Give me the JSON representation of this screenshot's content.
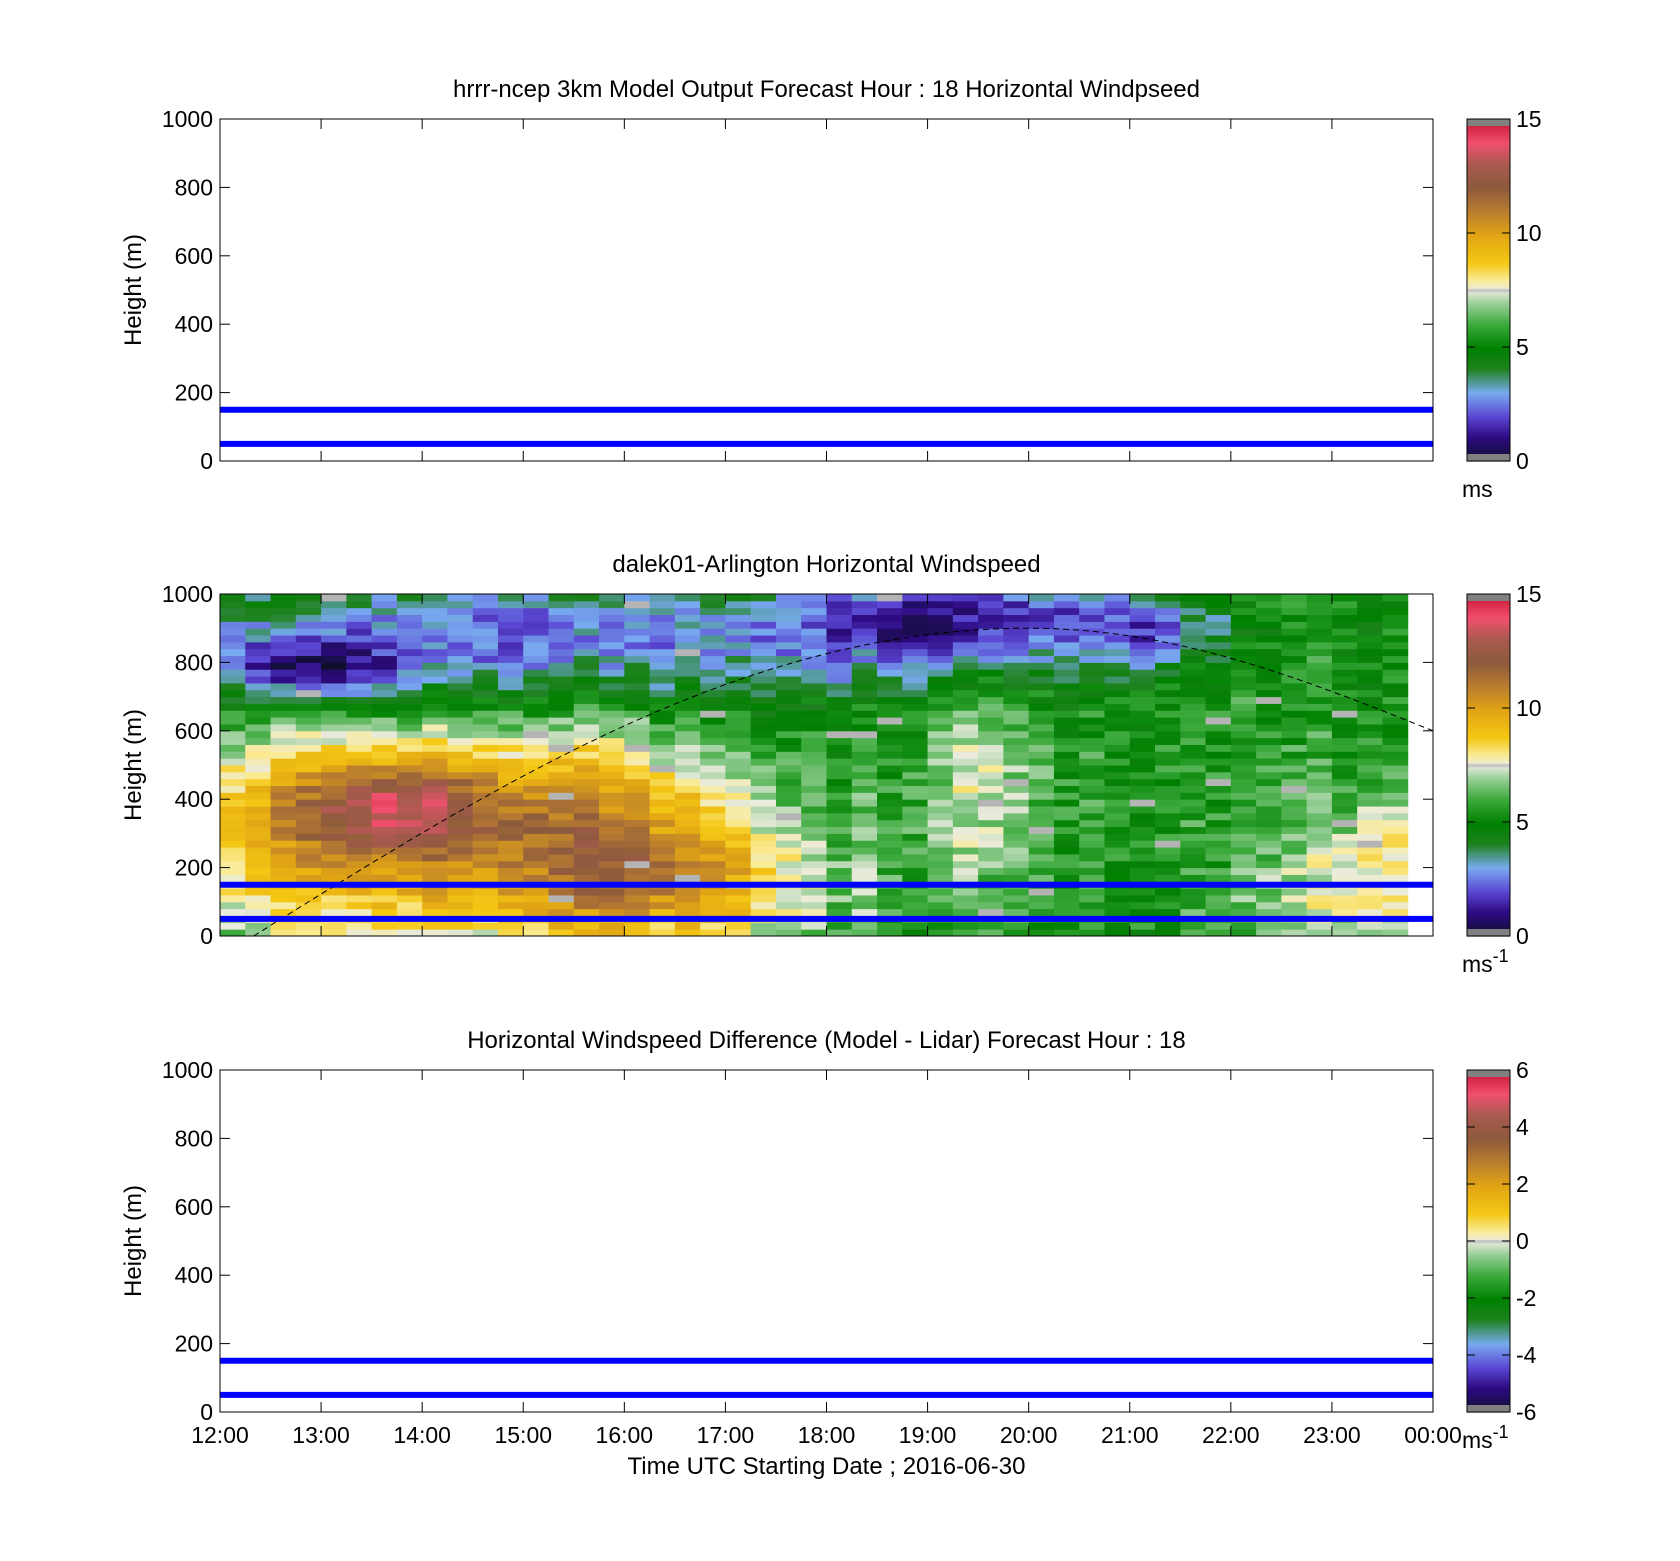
{
  "figure": {
    "xlabel": "Time UTC  Starting Date ; 2016-06-30",
    "x_ticks": [
      "12:00",
      "13:00",
      "14:00",
      "15:00",
      "16:00",
      "17:00",
      "18:00",
      "19:00",
      "20:00",
      "21:00",
      "22:00",
      "23:00",
      "00:00"
    ],
    "accent_line_color": "#0000ff"
  },
  "chart_data": [
    {
      "type": "heatmap",
      "title": "hrrr-ncep 3km Model Output   Forecast Hour : 18 Horizontal Windpseed",
      "ylabel": "Height (m)",
      "ylim": [
        0,
        1000
      ],
      "y_ticks": [
        "0",
        "200",
        "400",
        "600",
        "800",
        "1000"
      ],
      "xlim": [
        "12:00",
        "00:00"
      ],
      "data": "empty",
      "reference_lines_m": [
        50,
        150
      ],
      "colorbar": {
        "range": [
          0,
          15
        ],
        "ticks": [
          "0",
          "5",
          "10",
          "15"
        ],
        "unit": "ms",
        "unit_sup": ""
      }
    },
    {
      "type": "heatmap",
      "title": "dalek01-Arlington  Horizontal Windspeed",
      "ylabel": "Height (m)",
      "ylim": [
        0,
        1000
      ],
      "y_ticks": [
        "0",
        "200",
        "400",
        "600",
        "800",
        "1000"
      ],
      "xlim": [
        "12:00",
        "00:00"
      ],
      "data_extent_hours": [
        0,
        11.85
      ],
      "column_hours": 0.25,
      "height_bin_m": 20,
      "field_description_ms": {
        "low_level_jet_peak": {
          "time": "13:40",
          "height_m": 380,
          "speed": 13.5
        },
        "morning_low_layer_speed": 10.5,
        "afternoon_boundary_layer_speed": 5.5,
        "upper_level_morning_speed": 2.5,
        "evening_low_level_speed": 8.5
      },
      "reference_lines_m": [
        50,
        150
      ],
      "boundary_layer_curve": {
        "start": [
          "12:20",
          0
        ],
        "peak": [
          "20:00",
          900
        ],
        "end": [
          "00:00",
          600
        ]
      },
      "colorbar": {
        "range": [
          0,
          15
        ],
        "ticks": [
          "0",
          "5",
          "10",
          "15"
        ],
        "unit": "ms",
        "unit_sup": "-1"
      }
    },
    {
      "type": "heatmap",
      "title": "Horizontal Windspeed Difference (Model - Lidar) Forecast Hour : 18",
      "ylabel": "Height (m)",
      "ylim": [
        0,
        1000
      ],
      "y_ticks": [
        "0",
        "200",
        "400",
        "600",
        "800",
        "1000"
      ],
      "xlim": [
        "12:00",
        "00:00"
      ],
      "data": "empty",
      "reference_lines_m": [
        50,
        150
      ],
      "colorbar": {
        "range": [
          -6,
          6
        ],
        "ticks": [
          "-6",
          "-4",
          "-2",
          "0",
          "2",
          "4",
          "6"
        ],
        "unit": "ms",
        "unit_sup": "-1"
      }
    }
  ]
}
